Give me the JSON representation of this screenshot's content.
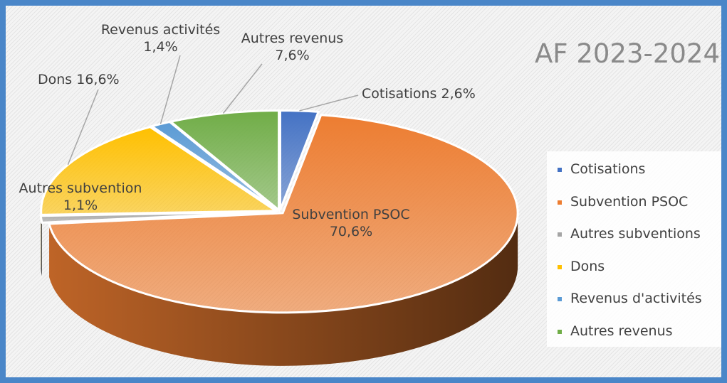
{
  "chart_data": {
    "type": "pie",
    "title": "AF 2023-2024",
    "labels": [
      "Cotisations",
      "Subvention PSOC",
      "Autres subventions",
      "Dons",
      "Revenus d'activités",
      "Autres revenus"
    ],
    "values": [
      2.6,
      70.6,
      1.1,
      16.6,
      1.4,
      7.6
    ],
    "value_labels": [
      "Cotisations 2,6%",
      "Subvention PSOC 70,6%",
      "Autres subvention 1,1%",
      "Dons 16,6%",
      "Revenus activités 1,4%",
      "Autres revenus 7,6%"
    ],
    "colors": [
      "#4472c4",
      "#ed7d31",
      "#a5a5a5",
      "#ffc000",
      "#5b9bd5",
      "#70ad47"
    ],
    "legend": "right"
  }
}
